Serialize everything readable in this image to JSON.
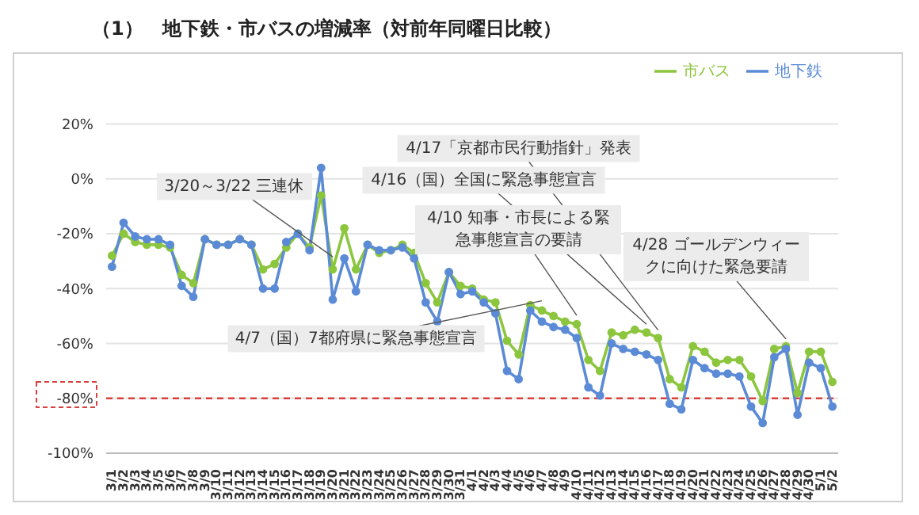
{
  "chart_data": {
    "type": "line",
    "title": "（1）　地下鉄・市バスの増減率（対前年同曜日比較）",
    "categories": [
      "3/1",
      "3/2",
      "3/3",
      "3/4",
      "3/5",
      "3/6",
      "3/7",
      "3/8",
      "3/9",
      "3/10",
      "3/11",
      "3/12",
      "3/13",
      "3/14",
      "3/15",
      "3/16",
      "3/17",
      "3/18",
      "3/19",
      "3/20",
      "3/21",
      "3/22",
      "3/23",
      "3/24",
      "3/25",
      "3/26",
      "3/27",
      "3/28",
      "3/29",
      "3/30",
      "3/31",
      "4/1",
      "4/2",
      "4/3",
      "4/4",
      "4/5",
      "4/6",
      "4/7",
      "4/8",
      "4/9",
      "4/10",
      "4/11",
      "4/12",
      "4/13",
      "4/14",
      "4/15",
      "4/16",
      "4/17",
      "4/18",
      "4/19",
      "4/20",
      "4/21",
      "4/22",
      "4/23",
      "4/24",
      "4/25",
      "4/26",
      "4/27",
      "4/28",
      "4/29",
      "4/30",
      "5/1",
      "5/2"
    ],
    "series": [
      {
        "name": "市バス",
        "color": "#8cc63e",
        "values": [
          -28,
          -20,
          -23,
          -24,
          -24,
          -25,
          -35,
          -38,
          -22,
          -24,
          -24,
          -22,
          -24,
          -33,
          -31,
          -25,
          -20,
          -25,
          -6,
          -33,
          -18,
          -33,
          -24,
          -27,
          -26,
          -24,
          -27,
          -38,
          -45,
          -34,
          -39,
          -40,
          -44,
          -45,
          -59,
          -64,
          -46,
          -48,
          -50,
          -52,
          -53,
          -66,
          -70,
          -56,
          -57,
          -55,
          -56,
          -58,
          -73,
          -76,
          -61,
          -63,
          -67,
          -66,
          -66,
          -72,
          -81,
          -62,
          -61,
          -78,
          -63,
          -63,
          -74
        ]
      },
      {
        "name": "地下鉄",
        "color": "#5b8bd6",
        "values": [
          -32,
          -16,
          -21,
          -22,
          -22,
          -24,
          -39,
          -43,
          -22,
          -24,
          -24,
          -22,
          -24,
          -40,
          -40,
          -23,
          -20,
          -26,
          4,
          -44,
          -29,
          -41,
          -24,
          -26,
          -26,
          -25,
          -29,
          -45,
          -52,
          -34,
          -42,
          -41,
          -45,
          -49,
          -70,
          -73,
          -48,
          -52,
          -54,
          -55,
          -58,
          -76,
          -79,
          -60,
          -62,
          -63,
          -64,
          -66,
          -82,
          -84,
          -66,
          -69,
          -71,
          -71,
          -72,
          -83,
          -89,
          -65,
          -62,
          -86,
          -67,
          -69,
          -83
        ]
      }
    ],
    "ylim": [
      -100,
      20
    ],
    "yticks": [
      {
        "value": 20,
        "label": "20%"
      },
      {
        "value": 0,
        "label": "0%"
      },
      {
        "value": -20,
        "label": "-20%"
      },
      {
        "value": -40,
        "label": "-40%"
      },
      {
        "value": -60,
        "label": "-60%"
      },
      {
        "value": -80,
        "label": "-80%"
      },
      {
        "value": -100,
        "label": "-100%"
      }
    ],
    "ref_lines": [
      {
        "axis": "y",
        "value": -80,
        "color": "#d9413e",
        "line_style": "dashed"
      }
    ],
    "annotations": [
      {
        "text": "3/20～3/22 三連休",
        "x": "3/20",
        "y": -33
      },
      {
        "text": "4/7（国）7都府県に緊急事態宣言",
        "x": "4/7",
        "y": -48
      },
      {
        "text": "4/10 知事・市長による緊急事態宣言の要請",
        "x": "4/10",
        "y": -53
      },
      {
        "text": "4/16（国）全国に緊急事態宣言",
        "x": "4/16",
        "y": -56
      },
      {
        "text": "4/17「京都市民行動指針」発表",
        "x": "4/17",
        "y": -58
      },
      {
        "text": "4/28 ゴールデンウィークに向けた緊急要請",
        "x": "4/28",
        "y": -61
      }
    ],
    "grid": "y",
    "legend": "top right",
    "marker": "circle",
    "line_style": "solid"
  }
}
